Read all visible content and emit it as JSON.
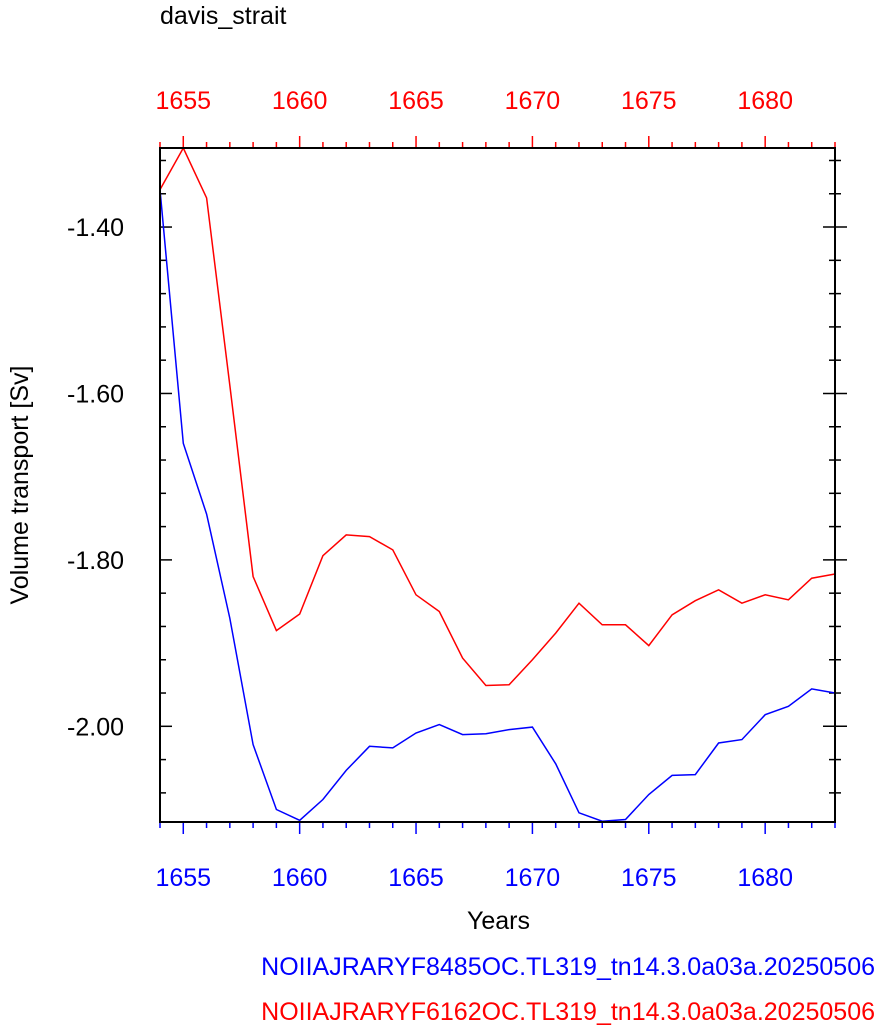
{
  "chart_data": {
    "type": "line",
    "title": "davis_strait",
    "xlabel": "Years",
    "ylabel": "Volume transport [Sv]",
    "xlim": [
      1654,
      1683
    ],
    "ylim": [
      -2.115,
      -1.305
    ],
    "x_ticks": [
      1655,
      1660,
      1665,
      1670,
      1675,
      1680
    ],
    "y_ticks": [
      -2.0,
      -1.8,
      -1.6,
      -1.4
    ],
    "y_tick_labels": [
      "-2.00",
      "-1.80",
      "-1.60",
      "-1.40"
    ],
    "grid": false,
    "x": [
      1654,
      1655,
      1656,
      1657,
      1658,
      1659,
      1660,
      1661,
      1662,
      1663,
      1664,
      1665,
      1666,
      1667,
      1668,
      1669,
      1670,
      1671,
      1672,
      1673,
      1674,
      1675,
      1676,
      1677,
      1678,
      1679,
      1680,
      1681,
      1682,
      1683
    ],
    "series": [
      {
        "name": "NOIIAJRARYF8485OC.TL319_tn14.3.0a03a.20250506",
        "color": "#0000ff",
        "axis_color": "#0000ff",
        "values": [
          -1.355,
          -1.66,
          -1.745,
          -1.87,
          -2.022,
          -2.1,
          -2.113,
          -2.088,
          -2.053,
          -2.024,
          -2.026,
          -2.008,
          -1.998,
          -2.01,
          -2.009,
          -2.004,
          -2.001,
          -2.045,
          -2.104,
          -2.114,
          -2.112,
          -2.082,
          -2.059,
          -2.058,
          -2.02,
          -2.016,
          -1.986,
          -1.976,
          -1.955,
          -1.96
        ]
      },
      {
        "name": "NOIIAJRARYF6162OC.TL319_tn14.3.0a03a.20250506",
        "color": "#ff0000",
        "axis_color": "#ff0000",
        "values": [
          -1.355,
          -1.305,
          -1.365,
          -1.59,
          -1.82,
          -1.885,
          -1.865,
          -1.795,
          -1.77,
          -1.772,
          -1.788,
          -1.842,
          -1.862,
          -1.918,
          -1.951,
          -1.95,
          -1.92,
          -1.888,
          -1.852,
          -1.878,
          -1.878,
          -1.903,
          -1.866,
          -1.849,
          -1.836,
          -1.852,
          -1.842,
          -1.848,
          -1.822,
          -1.817
        ]
      }
    ]
  }
}
